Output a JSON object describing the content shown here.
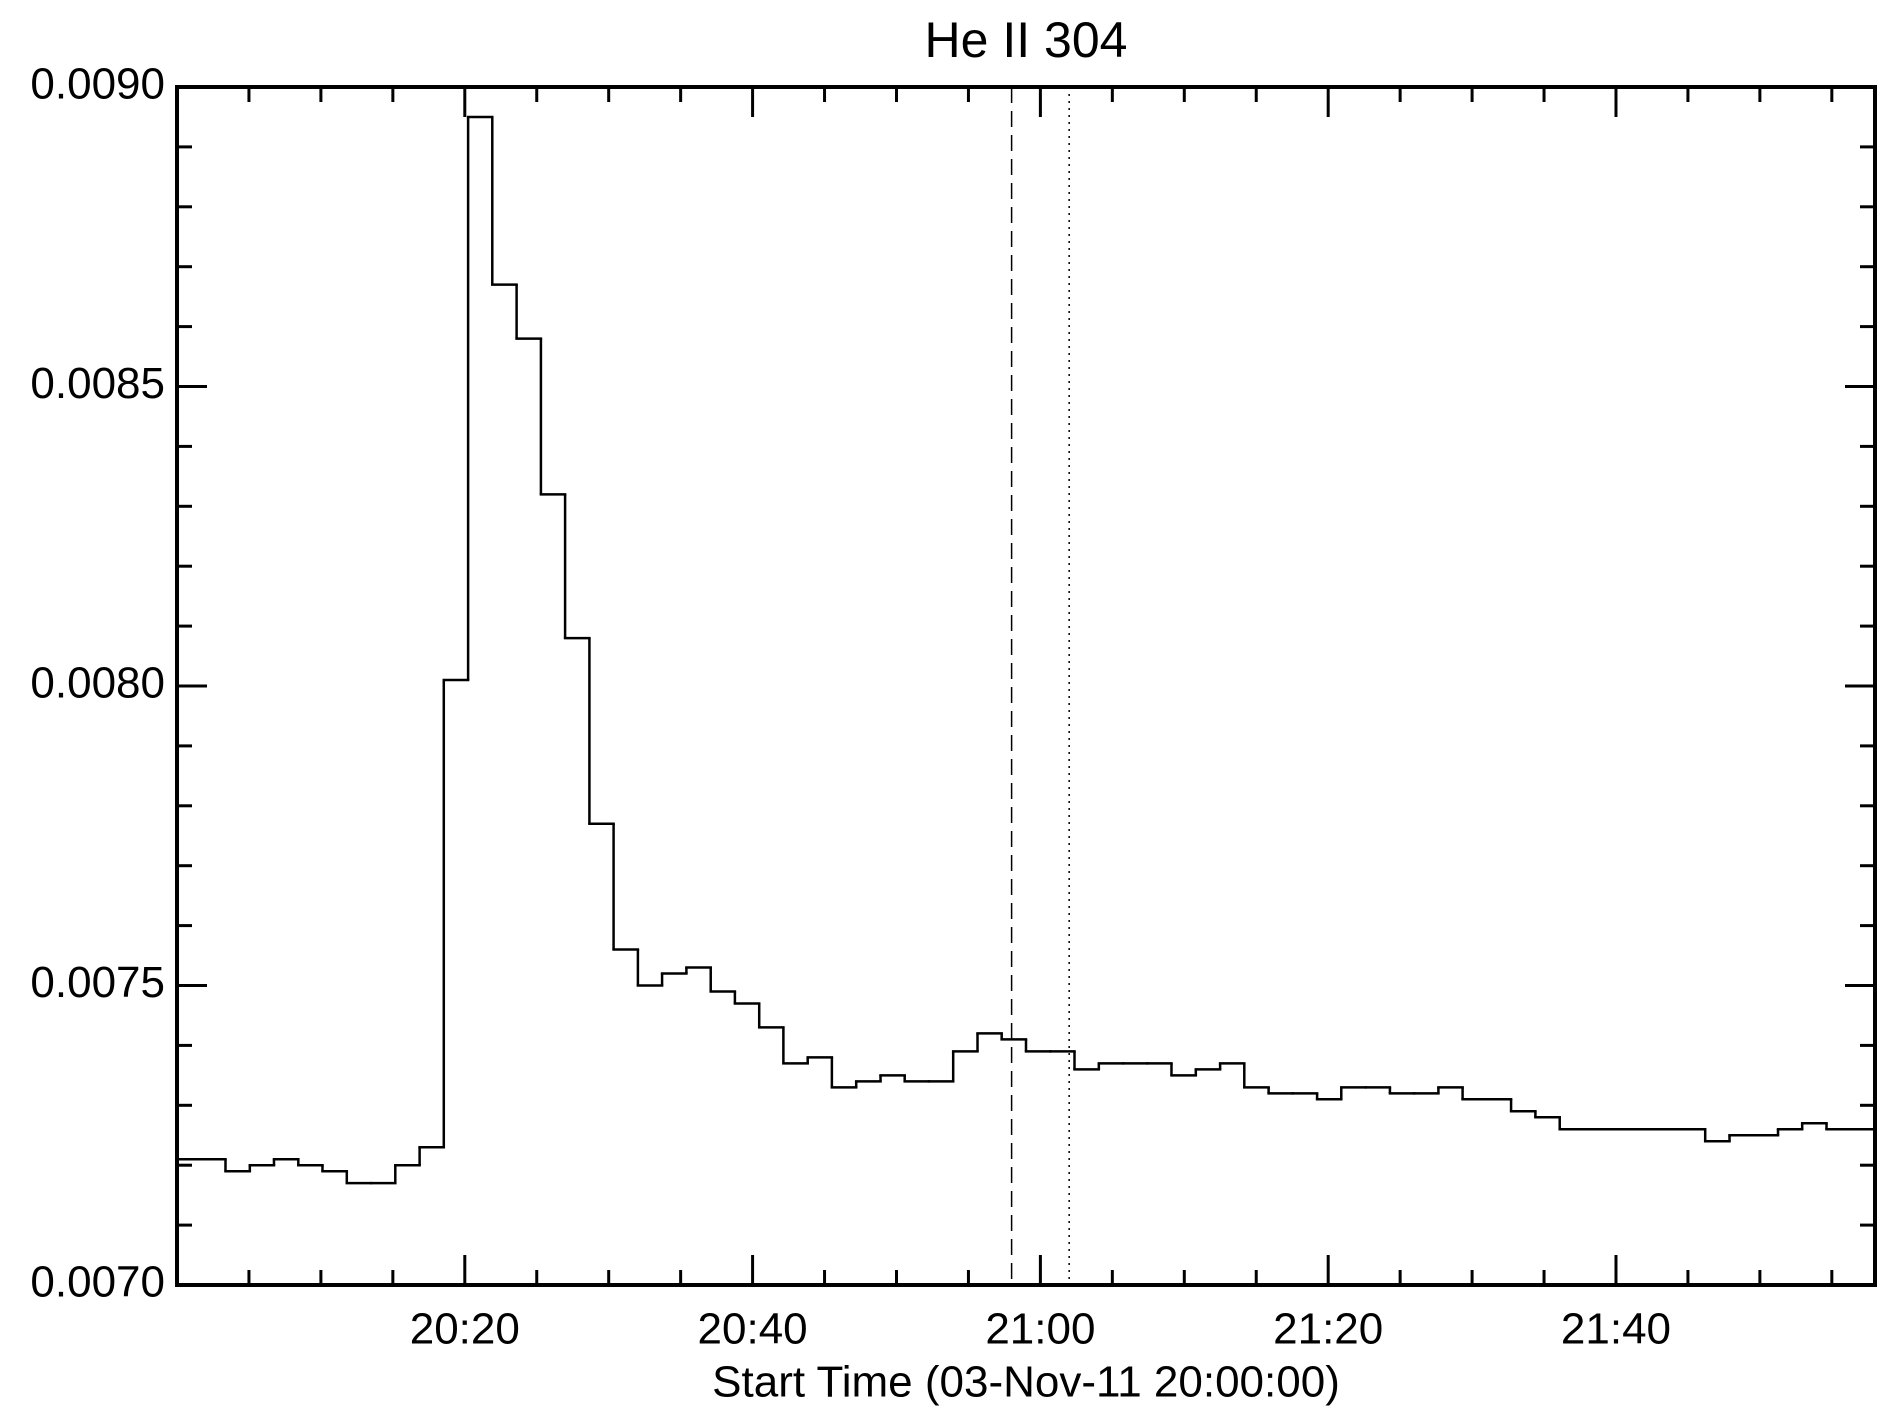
{
  "chart_data": {
    "type": "step",
    "title": "He II 304",
    "xlabel": "Start Time (03-Nov-11 20:00:00)",
    "xlim": [
      0,
      118
    ],
    "ylim": [
      0.007,
      0.009
    ],
    "xticks": [
      {
        "value": 20,
        "label": "20:20"
      },
      {
        "value": 40,
        "label": "20:40"
      },
      {
        "value": 60,
        "label": "21:00"
      },
      {
        "value": 80,
        "label": "21:20"
      },
      {
        "value": 100,
        "label": "21:40"
      }
    ],
    "xminorticks": [
      5,
      10,
      15,
      25,
      30,
      35,
      45,
      50,
      55,
      65,
      70,
      75,
      85,
      90,
      95,
      105,
      110,
      115
    ],
    "yticks": [
      {
        "value": 0.007,
        "label": "0.0070"
      },
      {
        "value": 0.0075,
        "label": "0.0075"
      },
      {
        "value": 0.008,
        "label": "0.0080"
      },
      {
        "value": 0.0085,
        "label": "0.0085"
      },
      {
        "value": 0.009,
        "label": "0.0090"
      }
    ],
    "yminorticks": [
      0.0071,
      0.0072,
      0.0073,
      0.0074,
      0.0076,
      0.0077,
      0.0078,
      0.0079,
      0.0081,
      0.0082,
      0.0083,
      0.0084,
      0.0086,
      0.0087,
      0.0088,
      0.0089
    ],
    "color": "#000000",
    "vlines": [
      {
        "value": 58,
        "style": "dashed"
      },
      {
        "value": 62,
        "style": "dotted"
      }
    ],
    "x": [
      0,
      1.69,
      3.37,
      5.06,
      6.74,
      8.43,
      10.11,
      11.8,
      13.49,
      15.17,
      16.86,
      18.54,
      20.23,
      21.91,
      23.6,
      25.29,
      26.97,
      28.66,
      30.34,
      32.03,
      33.71,
      35.4,
      37.09,
      38.77,
      40.46,
      42.14,
      43.83,
      45.51,
      47.2,
      48.89,
      50.57,
      52.26,
      53.94,
      55.63,
      57.31,
      59,
      60.69,
      62.37,
      64.06,
      65.74,
      67.43,
      69.11,
      70.8,
      72.49,
      74.17,
      75.86,
      77.54,
      79.23,
      80.91,
      82.6,
      84.29,
      85.97,
      87.66,
      89.34,
      91.03,
      92.71,
      94.4,
      96.09,
      97.77,
      99.46,
      101.14,
      102.83,
      104.51,
      106.2,
      107.89,
      109.57,
      111.26,
      112.94,
      114.63,
      116.31
    ],
    "values": [
      0.00721,
      0.00721,
      0.00719,
      0.0072,
      0.00721,
      0.0072,
      0.00719,
      0.00717,
      0.00717,
      0.0072,
      0.00723,
      0.00801,
      0.00895,
      0.00867,
      0.00858,
      0.00832,
      0.00808,
      0.00777,
      0.00756,
      0.0075,
      0.00752,
      0.00753,
      0.00749,
      0.00747,
      0.00743,
      0.00737,
      0.00738,
      0.00733,
      0.00734,
      0.00735,
      0.00734,
      0.00734,
      0.00739,
      0.00742,
      0.00741,
      0.00739,
      0.00739,
      0.00736,
      0.00737,
      0.00737,
      0.00737,
      0.00735,
      0.00736,
      0.00737,
      0.00733,
      0.00732,
      0.00732,
      0.00731,
      0.00733,
      0.00733,
      0.00732,
      0.00732,
      0.00733,
      0.00731,
      0.00731,
      0.00729,
      0.00728,
      0.00726,
      0.00726,
      0.00726,
      0.00726,
      0.00726,
      0.00726,
      0.00724,
      0.00725,
      0.00725,
      0.00726,
      0.00727,
      0.00726,
      0.00726
    ]
  }
}
